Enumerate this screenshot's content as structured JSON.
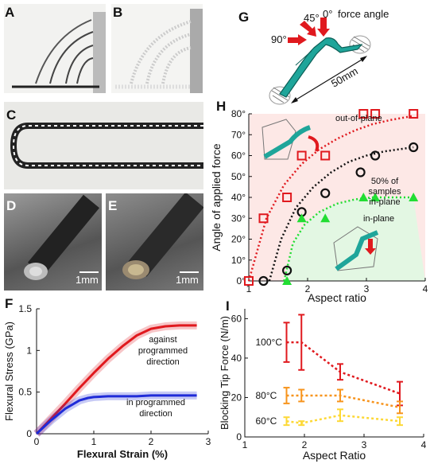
{
  "panels": {
    "a": "A",
    "b": "B",
    "c": "C",
    "d": "D",
    "e": "E",
    "f": "F",
    "g": "G",
    "h": "H",
    "i": "I"
  },
  "scalebars": {
    "d": "1mm",
    "e": "1mm"
  },
  "g_labels": {
    "a45": "45°",
    "a0": "0°",
    "force_angle": "force angle",
    "a90": "90°",
    "length": "50mm"
  },
  "chart_data": [
    {
      "id": "F",
      "type": "line",
      "xlabel": "Flexural Strain (%)",
      "ylabel": "Flexural Stress (GPa)",
      "xlim": [
        0,
        3
      ],
      "ylim": [
        0,
        1.5
      ],
      "xticks": [
        "0",
        "1",
        "2",
        "3"
      ],
      "yticks": [
        "0",
        "0.5",
        "1",
        "1.5"
      ],
      "series": [
        {
          "name": "against programmed direction",
          "color": "#e0191e",
          "x": [
            0,
            0.25,
            0.5,
            0.75,
            1.0,
            1.25,
            1.5,
            1.75,
            2.0,
            2.25,
            2.5,
            2.8
          ],
          "y": [
            0,
            0.18,
            0.36,
            0.55,
            0.73,
            0.9,
            1.05,
            1.18,
            1.26,
            1.29,
            1.3,
            1.3
          ]
        },
        {
          "name": "in programmed direction",
          "color": "#1f2bd8",
          "x": [
            0,
            0.25,
            0.5,
            0.75,
            0.9,
            1.0,
            1.25,
            1.5,
            1.75,
            2.0,
            2.25,
            2.5,
            2.8
          ],
          "y": [
            0,
            0.16,
            0.3,
            0.4,
            0.43,
            0.44,
            0.45,
            0.45,
            0.45,
            0.46,
            0.46,
            0.46,
            0.46
          ]
        }
      ],
      "legend_labels": [
        [
          "against",
          "programmed",
          "direction"
        ],
        [
          "in programmed",
          "direction"
        ]
      ]
    },
    {
      "id": "H",
      "type": "scatter",
      "xlabel": "Aspect ratio",
      "ylabel": "Angle of applied force",
      "xlim": [
        1,
        4
      ],
      "ylim": [
        0,
        80
      ],
      "xticks": [
        "1",
        "2",
        "3",
        "4"
      ],
      "yticks": [
        "0°",
        "10°",
        "20°",
        "30°",
        "40°",
        "50°",
        "60°",
        "70°",
        "80°"
      ],
      "annotations": {
        "oop": "out-of-plane",
        "half1": "50% of",
        "half2": "samples",
        "half3": "in-plane",
        "inp": "in-plane"
      },
      "series": [
        {
          "name": "out-of-plane",
          "marker": "square",
          "color": "#e0191e",
          "x": [
            1.0,
            1.25,
            1.65,
            1.9,
            2.3,
            2.95,
            3.15,
            3.8
          ],
          "y": [
            0,
            30,
            40,
            60,
            60,
            80,
            80,
            80
          ]
        },
        {
          "name": "50% of samples in-plane",
          "marker": "circle",
          "color": "#111111",
          "x": [
            1.25,
            1.65,
            1.9,
            2.3,
            2.9,
            3.15,
            3.8
          ],
          "y": [
            0,
            5,
            33,
            42,
            52,
            60,
            64
          ]
        },
        {
          "name": "in-plane",
          "marker": "triangle",
          "color": "#22dd33",
          "x": [
            1.65,
            1.9,
            2.3,
            2.95,
            3.15,
            3.8
          ],
          "y": [
            0,
            30,
            30,
            40,
            40,
            40
          ]
        }
      ],
      "fits": [
        {
          "color": "#e0191e",
          "x": [
            1.0,
            1.3,
            1.6,
            1.9,
            2.2,
            2.5,
            2.8,
            3.1,
            3.4,
            3.8
          ],
          "y": [
            0,
            30,
            46,
            56,
            63,
            68,
            72,
            75,
            77,
            79
          ]
        },
        {
          "color": "#111111",
          "x": [
            1.35,
            1.55,
            1.8,
            2.1,
            2.4,
            2.7,
            3.0,
            3.3,
            3.8
          ],
          "y": [
            0,
            20,
            35,
            45,
            52,
            57,
            60,
            62,
            64
          ]
        },
        {
          "color": "#22dd33",
          "x": [
            1.6,
            1.75,
            1.95,
            2.2,
            2.5,
            2.8,
            3.1,
            3.4,
            3.8
          ],
          "y": [
            0,
            18,
            27,
            33,
            37,
            39,
            40,
            40,
            40
          ]
        }
      ]
    },
    {
      "id": "I",
      "type": "line",
      "xlabel": "Aspect Ratio",
      "ylabel": "Blocking Tip Force (N/m)",
      "xlim": [
        1,
        4
      ],
      "ylim": [
        0,
        65
      ],
      "xticks": [
        "1",
        "2",
        "3",
        "4"
      ],
      "yticks": [
        "0",
        "20",
        "40",
        "60"
      ],
      "series": [
        {
          "name": "100°C",
          "color": "#e0191e",
          "x": [
            1.7,
            1.95,
            2.6,
            3.6
          ],
          "y": [
            48,
            48,
            33,
            22
          ],
          "err": [
            10,
            14,
            4,
            6
          ]
        },
        {
          "name": "80°C",
          "color": "#f7941d",
          "x": [
            1.7,
            1.95,
            2.6,
            3.6
          ],
          "y": [
            21,
            21,
            21,
            15
          ],
          "err": [
            4,
            3,
            3,
            3
          ]
        },
        {
          "name": "60°C",
          "color": "#fdd835",
          "x": [
            1.7,
            1.95,
            2.6,
            3.6
          ],
          "y": [
            8,
            7,
            11,
            8
          ],
          "err": [
            2,
            1,
            3,
            2
          ]
        }
      ]
    }
  ]
}
